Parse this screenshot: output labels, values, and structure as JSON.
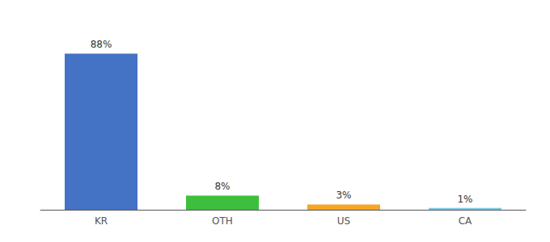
{
  "chart_data": {
    "type": "bar",
    "categories": [
      "KR",
      "OTH",
      "US",
      "CA"
    ],
    "values": [
      88,
      8,
      3,
      1
    ],
    "value_labels": [
      "88%",
      "8%",
      "3%",
      "1%"
    ],
    "colors": [
      "#4472c4",
      "#3dbf3d",
      "#f5a623",
      "#7ec8e3"
    ],
    "ylim": [
      0,
      100
    ],
    "data_labels": true,
    "tick_labels": "x",
    "grid": false
  }
}
